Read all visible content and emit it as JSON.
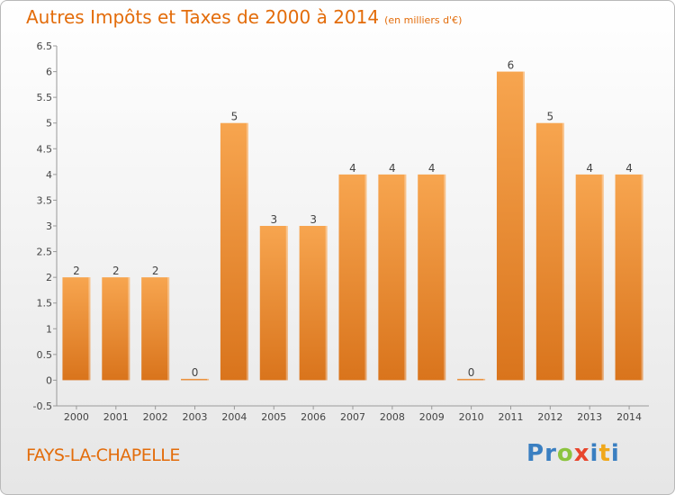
{
  "title": "Autres Impôts et Taxes de 2000 à 2014",
  "unit_note": "(en milliers d'€)",
  "town": "FAYS-LA-CHAPELLE",
  "brand": {
    "letters": [
      "P",
      "r",
      "o",
      "x",
      "i",
      "t",
      "i"
    ],
    "colors": [
      "#3a7fc1",
      "#3a7fc1",
      "#8cc43f",
      "#e8452c",
      "#3a7fc1",
      "#f0a81b",
      "#3a7fc1"
    ]
  },
  "colors": {
    "accent": "#e36c0a",
    "bar_top": "#f7a54f",
    "bar_bottom": "#d9741c",
    "axis": "#999999"
  },
  "chart_data": {
    "type": "bar",
    "categories": [
      "2000",
      "2001",
      "2002",
      "2003",
      "2004",
      "2005",
      "2006",
      "2007",
      "2008",
      "2009",
      "2010",
      "2011",
      "2012",
      "2013",
      "2014"
    ],
    "values": [
      2,
      2,
      2,
      0,
      5,
      3,
      3,
      4,
      4,
      4,
      0,
      6,
      5,
      4,
      4
    ],
    "data_labels": [
      "2",
      "2",
      "2",
      "0",
      "5",
      "3",
      "3",
      "4",
      "4",
      "4",
      "0",
      "6",
      "5",
      "4",
      "4"
    ],
    "y_ticks": [
      "-0.5",
      "0",
      "0.5",
      "1",
      "1.5",
      "2",
      "2.5",
      "3",
      "3.5",
      "4",
      "4.5",
      "5",
      "5.5",
      "6",
      "6.5"
    ],
    "ylim": [
      -0.5,
      6.5
    ],
    "xlabel": "",
    "ylabel": "",
    "grid": false
  }
}
